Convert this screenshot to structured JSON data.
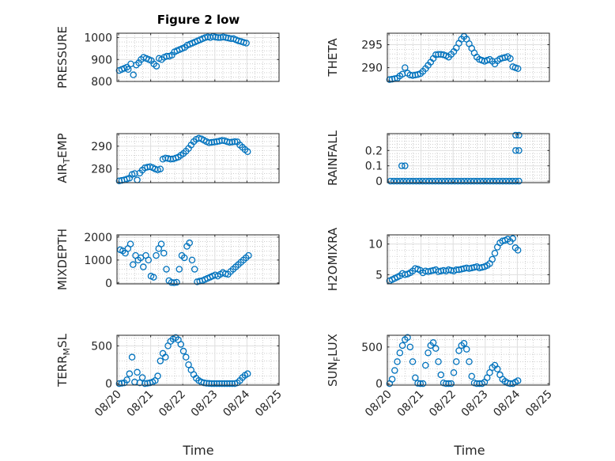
{
  "figure": {
    "title": "Figure 2 low",
    "xlabel": "Time"
  },
  "colors": {
    "marker": "#0072BD",
    "axis": "#262626",
    "grid": "#dfdfdf",
    "minor_grid": "#b0b0b0"
  },
  "x_tick_labels": [
    "08/20",
    "08/21",
    "08/22",
    "08/23",
    "08/24",
    "08/25"
  ],
  "chart_data": [
    {
      "type": "scatter",
      "ylabel": "PRESSURE",
      "ylim": [
        800,
        1020
      ],
      "yticks": [
        800,
        900,
        1000
      ],
      "grid": true,
      "x": [
        0.02,
        0.1,
        0.18,
        0.26,
        0.3,
        0.38,
        0.46,
        0.55,
        0.63,
        0.7,
        0.78,
        0.86,
        0.94,
        1.02,
        1.1,
        1.18,
        1.26,
        1.34,
        1.42,
        1.5,
        1.58,
        1.66,
        1.74,
        1.82,
        1.9,
        1.98,
        2.06,
        2.14,
        2.22,
        2.3,
        2.38,
        2.46,
        2.54,
        2.62,
        2.7,
        2.78,
        2.86,
        2.94,
        3.02,
        3.1,
        3.18,
        3.26,
        3.34,
        3.42,
        3.5,
        3.58,
        3.66,
        3.74,
        3.82,
        3.9,
        3.98
      ],
      "y": [
        850,
        855,
        860,
        865,
        855,
        880,
        830,
        875,
        885,
        900,
        910,
        905,
        900,
        895,
        880,
        870,
        905,
        900,
        910,
        915,
        915,
        920,
        935,
        940,
        945,
        950,
        955,
        965,
        970,
        975,
        980,
        985,
        990,
        995,
        1000,
        1003,
        1000,
        1005,
        1002,
        1000,
        1000,
        1003,
        1000,
        998,
        995,
        995,
        990,
        985,
        982,
        978,
        975
      ]
    },
    {
      "type": "scatter",
      "ylabel": "THETA",
      "ylim": [
        287,
        297.5
      ],
      "yticks": [
        290,
        295
      ],
      "grid": true,
      "x": [
        0.02,
        0.1,
        0.18,
        0.26,
        0.34,
        0.42,
        0.5,
        0.58,
        0.66,
        0.74,
        0.82,
        0.9,
        0.98,
        1.06,
        1.14,
        1.22,
        1.3,
        1.38,
        1.46,
        1.54,
        1.62,
        1.7,
        1.78,
        1.86,
        1.94,
        2.02,
        2.1,
        2.18,
        2.26,
        2.34,
        2.42,
        2.5,
        2.58,
        2.66,
        2.74,
        2.82,
        2.9,
        2.98,
        3.06,
        3.14,
        3.22,
        3.3,
        3.38,
        3.46,
        3.54,
        3.62,
        3.7,
        3.78,
        3.86,
        3.94,
        4.02
      ],
      "y": [
        287.4,
        287.5,
        287.6,
        287.7,
        288.2,
        288.6,
        290.0,
        288.8,
        288.4,
        288.3,
        288.4,
        288.5,
        288.7,
        289.2,
        289.8,
        290.5,
        291.2,
        292.0,
        292.8,
        292.9,
        292.9,
        292.8,
        292.6,
        292.3,
        292.9,
        293.5,
        294.3,
        295.3,
        296.2,
        296.8,
        296.2,
        295.2,
        294.2,
        293.2,
        292.3,
        291.8,
        291.6,
        291.4,
        291.6,
        291.8,
        291.4,
        290.8,
        291.5,
        291.9,
        292.1,
        292.2,
        292.4,
        292.0,
        290.2,
        290.0,
        289.8
      ]
    },
    {
      "type": "scatter",
      "ylabel": "AIR_TEMP",
      "ylim": [
        274,
        295.5
      ],
      "yticks": [
        280,
        290
      ],
      "grid": true,
      "x": [
        0.02,
        0.1,
        0.18,
        0.26,
        0.34,
        0.42,
        0.5,
        0.58,
        0.66,
        0.74,
        0.82,
        0.9,
        0.98,
        1.06,
        1.14,
        1.22,
        1.3,
        1.38,
        1.46,
        1.54,
        1.62,
        1.7,
        1.78,
        1.86,
        1.94,
        2.02,
        2.1,
        2.18,
        2.26,
        2.34,
        2.42,
        2.5,
        2.58,
        2.66,
        2.74,
        2.82,
        2.9,
        2.98,
        3.06,
        3.14,
        3.22,
        3.3,
        3.38,
        3.46,
        3.54,
        3.62,
        3.7,
        3.78,
        3.86,
        3.94,
        4.02
      ],
      "y": [
        274.8,
        275.0,
        275.2,
        275.6,
        276.0,
        277.6,
        278.0,
        275.2,
        278.2,
        279.5,
        280.5,
        280.8,
        281.0,
        280.6,
        280.0,
        279.6,
        280.0,
        284.3,
        284.8,
        284.6,
        284.3,
        284.4,
        284.8,
        285.2,
        286.0,
        286.8,
        287.8,
        289.0,
        290.5,
        292.0,
        293.0,
        293.5,
        293.2,
        292.6,
        292.0,
        291.5,
        291.7,
        291.8,
        292.0,
        292.2,
        292.5,
        292.4,
        292.0,
        291.7,
        291.8,
        292.0,
        291.9,
        290.5,
        289.5,
        288.5,
        287.6
      ]
    },
    {
      "type": "scatter",
      "ylabel": "RAINFALL",
      "ylim": [
        -0.01,
        0.31
      ],
      "yticks": [
        0,
        0.1,
        0.2
      ],
      "grid": true,
      "x": [
        0.05,
        0.15,
        0.25,
        0.35,
        0.45,
        0.55,
        0.65,
        0.75,
        0.85,
        0.95,
        1.05,
        1.15,
        1.25,
        1.35,
        1.45,
        1.55,
        1.65,
        1.75,
        1.85,
        1.95,
        2.05,
        2.15,
        2.25,
        2.35,
        2.45,
        2.55,
        2.65,
        2.75,
        2.85,
        2.95,
        3.05,
        3.15,
        3.25,
        3.35,
        3.45,
        3.55,
        3.65,
        3.75,
        3.85,
        3.95,
        0.4,
        0.5,
        3.95,
        4.05,
        3.95,
        4.05,
        4.05
      ],
      "y": [
        0,
        0,
        0,
        0,
        0,
        0,
        0,
        0,
        0,
        0,
        0,
        0,
        0,
        0,
        0,
        0,
        0,
        0,
        0,
        0,
        0,
        0,
        0,
        0,
        0,
        0,
        0,
        0,
        0,
        0,
        0,
        0,
        0,
        0,
        0,
        0,
        0,
        0,
        0,
        0,
        0.1,
        0.1,
        0.2,
        0.2,
        0.3,
        0.3,
        0
      ]
    },
    {
      "type": "scatter",
      "ylabel": "MIXDEPTH",
      "ylim": [
        -40,
        2100
      ],
      "yticks": [
        0,
        1000,
        2000
      ],
      "grid": true,
      "x": [
        0.05,
        0.13,
        0.21,
        0.29,
        0.37,
        0.45,
        0.53,
        0.61,
        0.69,
        0.77,
        0.85,
        0.93,
        1.01,
        1.09,
        1.17,
        1.25,
        1.33,
        1.41,
        1.49,
        1.57,
        1.65,
        1.73,
        1.81,
        1.89,
        1.97,
        2.05,
        2.13,
        2.21,
        2.29,
        2.37,
        2.45,
        2.53,
        2.61,
        2.69,
        2.77,
        2.85,
        2.93,
        3.01,
        3.09,
        3.17,
        3.25,
        3.33,
        3.41,
        3.49,
        3.57,
        3.65,
        3.73,
        3.81,
        3.89,
        3.97,
        4.05
      ],
      "y": [
        1450,
        1400,
        1300,
        1500,
        1700,
        800,
        1200,
        1000,
        1100,
        700,
        1200,
        1000,
        300,
        250,
        1200,
        1500,
        1700,
        1300,
        600,
        100,
        20,
        10,
        30,
        600,
        1200,
        1100,
        1600,
        1750,
        1000,
        600,
        50,
        80,
        100,
        150,
        200,
        250,
        300,
        350,
        300,
        380,
        450,
        400,
        380,
        500,
        600,
        700,
        800,
        900,
        1000,
        1100,
        1200
      ]
    },
    {
      "type": "scatter",
      "ylabel": "H2OMIXRA",
      "ylim": [
        3.5,
        11.5
      ],
      "yticks": [
        5,
        10
      ],
      "grid": true,
      "x": [
        0.02,
        0.1,
        0.18,
        0.26,
        0.34,
        0.42,
        0.5,
        0.58,
        0.66,
        0.74,
        0.82,
        0.9,
        0.98,
        1.06,
        1.14,
        1.22,
        1.3,
        1.38,
        1.46,
        1.54,
        1.62,
        1.7,
        1.78,
        1.86,
        1.94,
        2.02,
        2.1,
        2.18,
        2.26,
        2.34,
        2.42,
        2.5,
        2.58,
        2.66,
        2.74,
        2.82,
        2.9,
        2.98,
        3.06,
        3.14,
        3.22,
        3.3,
        3.38,
        3.46,
        3.54,
        3.62,
        3.7,
        3.78,
        3.86,
        3.94,
        4.02
      ],
      "y": [
        4.0,
        4.2,
        4.4,
        4.6,
        4.8,
        5.2,
        5.0,
        5.1,
        5.3,
        5.6,
        6.0,
        5.9,
        5.7,
        5.3,
        5.6,
        5.5,
        5.6,
        5.7,
        5.8,
        5.5,
        5.6,
        5.7,
        5.6,
        5.8,
        5.7,
        5.6,
        5.8,
        5.8,
        5.9,
        6.0,
        6.1,
        6.0,
        6.1,
        6.2,
        6.3,
        6.1,
        6.2,
        6.3,
        6.5,
        6.8,
        7.5,
        8.5,
        9.5,
        10.2,
        10.5,
        10.6,
        10.8,
        10.4,
        10.9,
        9.4,
        9.0
      ]
    },
    {
      "type": "scatter",
      "ylabel": "TERR_MSL",
      "ylim": [
        -20,
        640
      ],
      "yticks": [
        0,
        500
      ],
      "grid": true,
      "x": [
        0.02,
        0.1,
        0.18,
        0.26,
        0.34,
        0.42,
        0.5,
        0.58,
        0.66,
        0.74,
        0.82,
        0.9,
        0.98,
        1.06,
        1.14,
        1.22,
        1.3,
        1.38,
        1.46,
        1.54,
        1.62,
        1.7,
        1.78,
        1.86,
        1.94,
        2.02,
        2.1,
        2.18,
        2.26,
        2.34,
        2.42,
        2.5,
        2.58,
        2.66,
        2.74,
        2.82,
        2.9,
        2.98,
        3.06,
        3.14,
        3.22,
        3.3,
        3.38,
        3.46,
        3.54,
        3.62,
        3.7,
        3.78,
        3.86,
        3.94,
        4.02
      ],
      "y": [
        0,
        5,
        10,
        50,
        130,
        350,
        20,
        150,
        10,
        80,
        0,
        5,
        10,
        20,
        40,
        100,
        300,
        400,
        350,
        500,
        560,
        590,
        610,
        580,
        520,
        430,
        350,
        250,
        180,
        120,
        70,
        40,
        20,
        10,
        5,
        2,
        0,
        0,
        0,
        0,
        0,
        0,
        0,
        0,
        0,
        0,
        10,
        40,
        80,
        110,
        130
      ]
    },
    {
      "type": "scatter",
      "ylabel": "SUN_FLUX",
      "ylim": [
        -20,
        660
      ],
      "yticks": [
        0,
        500
      ],
      "grid": true,
      "x": [
        0.02,
        0.1,
        0.18,
        0.26,
        0.34,
        0.42,
        0.5,
        0.58,
        0.66,
        0.74,
        0.82,
        0.9,
        0.98,
        1.06,
        1.14,
        1.22,
        1.3,
        1.38,
        1.46,
        1.54,
        1.62,
        1.7,
        1.78,
        1.86,
        1.94,
        2.02,
        2.1,
        2.18,
        2.26,
        2.34,
        2.42,
        2.5,
        2.58,
        2.66,
        2.74,
        2.82,
        2.9,
        2.98,
        3.06,
        3.14,
        3.22,
        3.3,
        3.38,
        3.46,
        3.54,
        3.62,
        3.7,
        3.78,
        3.86,
        3.94,
        4.02
      ],
      "y": [
        0,
        60,
        180,
        300,
        420,
        520,
        600,
        630,
        500,
        300,
        80,
        5,
        0,
        0,
        250,
        420,
        520,
        560,
        480,
        300,
        120,
        10,
        0,
        0,
        0,
        150,
        300,
        450,
        520,
        550,
        470,
        300,
        100,
        10,
        0,
        0,
        0,
        20,
        80,
        150,
        220,
        250,
        200,
        120,
        60,
        30,
        10,
        0,
        0,
        20,
        40
      ]
    }
  ]
}
